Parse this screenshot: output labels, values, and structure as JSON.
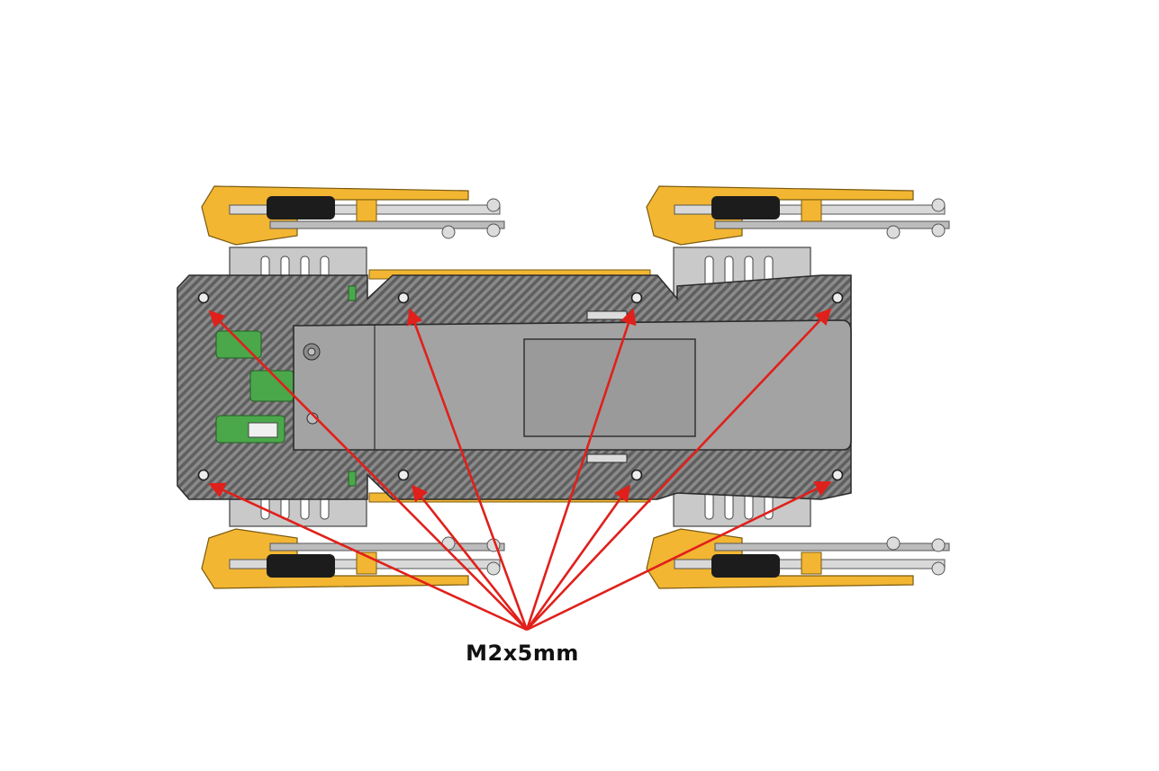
{
  "callout": {
    "label": "M2x5mm",
    "screw_count": 8,
    "arrow_color": "#e0201b"
  },
  "colors": {
    "carbon_plate": "#6e6e6e",
    "battery_body": "#a3a3a3",
    "bracket_yellow": "#f2b632",
    "pcb_green": "#4aa84a",
    "servo_metal": "#c9c9c9",
    "wheel_black": "#1c1c1c"
  }
}
